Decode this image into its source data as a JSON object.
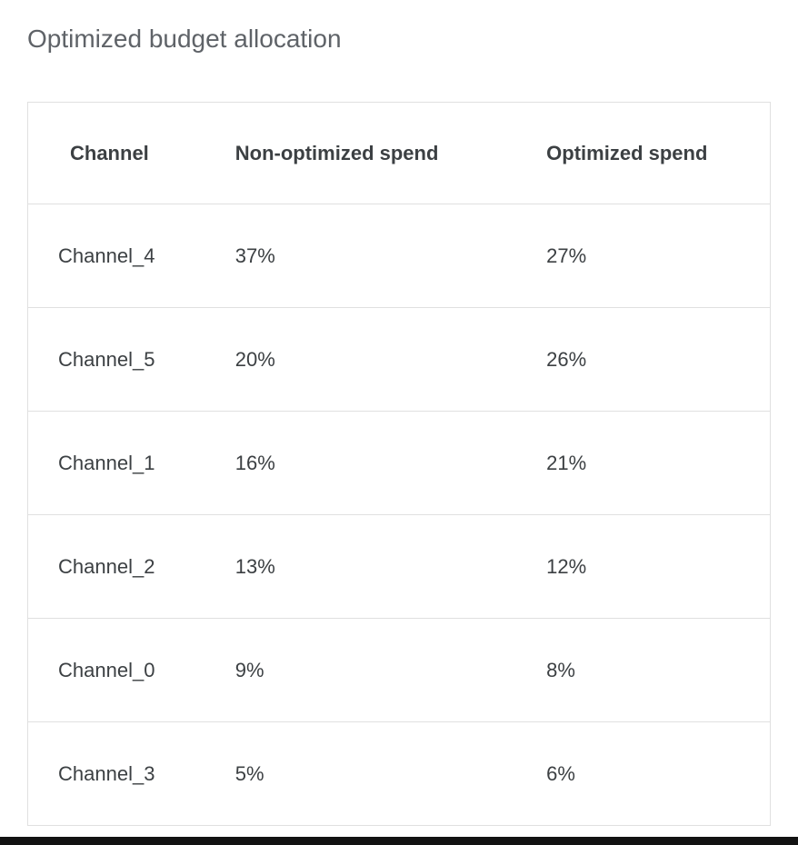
{
  "title": "Optimized budget allocation",
  "colors": {
    "title_text": "#5f6368",
    "table_text": "#3c4043",
    "table_border": "#e0e0e0",
    "bottom_bar": "#121212"
  },
  "chart_data": {
    "type": "table",
    "title": "Optimized budget allocation",
    "columns": [
      "Channel",
      "Non-optimized spend",
      "Optimized spend"
    ],
    "rows": [
      [
        "Channel_4",
        "37%",
        "27%"
      ],
      [
        "Channel_5",
        "20%",
        "26%"
      ],
      [
        "Channel_1",
        "16%",
        "21%"
      ],
      [
        "Channel_2",
        "13%",
        "12%"
      ],
      [
        "Channel_0",
        "9%",
        "8%"
      ],
      [
        "Channel_3",
        "5%",
        "6%"
      ]
    ]
  }
}
